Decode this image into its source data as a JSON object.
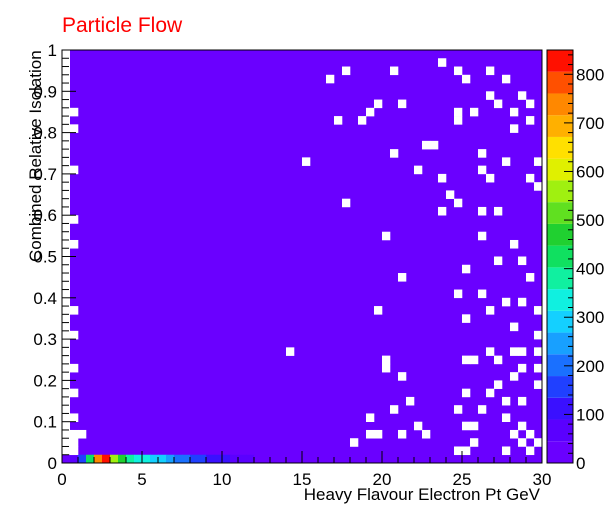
{
  "chart_data": {
    "type": "heatmap",
    "title": "Particle Flow",
    "xlabel": "Heavy Flavour Electron Pt GeV",
    "ylabel": "Combined Relative Isolation",
    "xlim": [
      0,
      30
    ],
    "ylim": [
      0,
      1
    ],
    "xbins": 60,
    "ybins": 50,
    "x_ticks": [
      0,
      5,
      10,
      15,
      20,
      25,
      30
    ],
    "y_ticks": [
      0,
      0.1,
      0.2,
      0.3,
      0.4,
      0.5,
      0.6,
      0.7,
      0.8,
      0.9,
      1
    ],
    "colorbar": {
      "min": 0,
      "max": 850,
      "ticks": [
        0,
        100,
        200,
        300,
        400,
        500,
        600,
        700,
        800
      ]
    },
    "background_fill_value": 5,
    "first_row_values": [
      {
        "x": 0.5,
        "value": 70
      },
      {
        "x": 1.0,
        "value": 150
      },
      {
        "x": 1.5,
        "value": 420
      },
      {
        "x": 2.0,
        "value": 760
      },
      {
        "x": 2.5,
        "value": 840
      },
      {
        "x": 3.0,
        "value": 580
      },
      {
        "x": 3.5,
        "value": 460
      },
      {
        "x": 4.0,
        "value": 400
      },
      {
        "x": 4.5,
        "value": 340
      },
      {
        "x": 5.0,
        "value": 320
      },
      {
        "x": 5.5,
        "value": 290
      },
      {
        "x": 6.0,
        "value": 270
      },
      {
        "x": 6.5,
        "value": 230
      },
      {
        "x": 7.0,
        "value": 210
      },
      {
        "x": 7.5,
        "value": 200
      },
      {
        "x": 8.0,
        "value": 170
      },
      {
        "x": 8.5,
        "value": 150
      },
      {
        "x": 9.0,
        "value": 130
      },
      {
        "x": 9.5,
        "value": 110
      },
      {
        "x": 10.0,
        "value": 90
      },
      {
        "x": 10.5,
        "value": 80
      },
      {
        "x": 11.0,
        "value": 60
      },
      {
        "x": 11.5,
        "value": 50
      },
      {
        "x": 12.0,
        "value": 40
      }
    ],
    "empty_bins": [
      [
        17.5,
        0.94
      ],
      [
        20.5,
        0.94
      ],
      [
        24.5,
        0.94
      ],
      [
        26.5,
        0.94
      ],
      [
        23.5,
        0.96
      ],
      [
        16.5,
        0.92
      ],
      [
        25.0,
        0.92
      ],
      [
        27.5,
        0.92
      ],
      [
        19.5,
        0.86
      ],
      [
        21.0,
        0.86
      ],
      [
        26.5,
        0.88
      ],
      [
        27.0,
        0.86
      ],
      [
        28.5,
        0.88
      ],
      [
        29.0,
        0.86
      ],
      [
        19.0,
        0.84
      ],
      [
        24.5,
        0.84
      ],
      [
        25.5,
        0.84
      ],
      [
        28.0,
        0.84
      ],
      [
        29.0,
        0.82
      ],
      [
        17.0,
        0.82
      ],
      [
        18.5,
        0.82
      ],
      [
        24.5,
        0.82
      ],
      [
        28.0,
        0.8
      ],
      [
        0.5,
        0.84
      ],
      [
        0.5,
        0.8
      ],
      [
        23.0,
        0.76
      ],
      [
        22.5,
        0.76
      ],
      [
        20.5,
        0.74
      ],
      [
        26.0,
        0.74
      ],
      [
        27.5,
        0.72
      ],
      [
        15.0,
        0.72
      ],
      [
        29.5,
        0.72
      ],
      [
        22.0,
        0.7
      ],
      [
        0.5,
        0.7
      ],
      [
        26.0,
        0.7
      ],
      [
        26.5,
        0.68
      ],
      [
        29.0,
        0.68
      ],
      [
        23.5,
        0.68
      ],
      [
        29.5,
        0.66
      ],
      [
        24.0,
        0.64
      ],
      [
        17.5,
        0.62
      ],
      [
        24.5,
        0.62
      ],
      [
        23.5,
        0.6
      ],
      [
        26.0,
        0.6
      ],
      [
        27.0,
        0.6
      ],
      [
        0.5,
        0.58
      ],
      [
        20.0,
        0.54
      ],
      [
        26.0,
        0.54
      ],
      [
        28.0,
        0.52
      ],
      [
        0.5,
        0.52
      ],
      [
        27.0,
        0.48
      ],
      [
        28.5,
        0.48
      ],
      [
        21.0,
        0.44
      ],
      [
        25.0,
        0.46
      ],
      [
        29.0,
        0.44
      ],
      [
        24.5,
        0.4
      ],
      [
        26.0,
        0.4
      ],
      [
        27.5,
        0.38
      ],
      [
        28.5,
        0.38
      ],
      [
        26.5,
        0.36
      ],
      [
        19.5,
        0.36
      ],
      [
        0.5,
        0.36
      ],
      [
        29.5,
        0.36
      ],
      [
        25.0,
        0.34
      ],
      [
        28.0,
        0.32
      ],
      [
        0.5,
        0.3
      ],
      [
        29.5,
        0.3
      ],
      [
        14.0,
        0.26
      ],
      [
        26.5,
        0.26
      ],
      [
        28.0,
        0.26
      ],
      [
        28.5,
        0.26
      ],
      [
        29.5,
        0.26
      ],
      [
        20.0,
        0.24
      ],
      [
        25.0,
        0.24
      ],
      [
        25.5,
        0.24
      ],
      [
        27.0,
        0.24
      ],
      [
        0.5,
        0.22
      ],
      [
        20.0,
        0.22
      ],
      [
        28.5,
        0.22
      ],
      [
        29.5,
        0.22
      ],
      [
        28.0,
        0.2
      ],
      [
        21.0,
        0.2
      ],
      [
        27.0,
        0.18
      ],
      [
        29.5,
        0.18
      ],
      [
        0.5,
        0.16
      ],
      [
        25.0,
        0.16
      ],
      [
        26.5,
        0.16
      ],
      [
        21.5,
        0.14
      ],
      [
        27.5,
        0.14
      ],
      [
        28.5,
        0.14
      ],
      [
        24.5,
        0.12
      ],
      [
        20.5,
        0.12
      ],
      [
        26.0,
        0.12
      ],
      [
        19.0,
        0.1
      ],
      [
        0.5,
        0.1
      ],
      [
        27.5,
        0.1
      ],
      [
        22.0,
        0.08
      ],
      [
        25.0,
        0.08
      ],
      [
        25.5,
        0.08
      ],
      [
        28.5,
        0.08
      ],
      [
        0.5,
        0.06
      ],
      [
        19.0,
        0.06
      ],
      [
        19.5,
        0.06
      ],
      [
        21.0,
        0.06
      ],
      [
        22.5,
        0.06
      ],
      [
        28.0,
        0.06
      ],
      [
        29.0,
        0.06
      ],
      [
        18.0,
        0.04
      ],
      [
        25.5,
        0.04
      ],
      [
        28.5,
        0.04
      ],
      [
        0.5,
        0.04
      ],
      [
        24.5,
        0.02
      ],
      [
        25.0,
        0.02
      ],
      [
        27.5,
        0.02
      ],
      [
        0.5,
        0.02
      ],
      [
        29.0,
        0.02
      ],
      [
        1.0,
        0.06
      ],
      [
        29.5,
        0.04
      ]
    ]
  }
}
